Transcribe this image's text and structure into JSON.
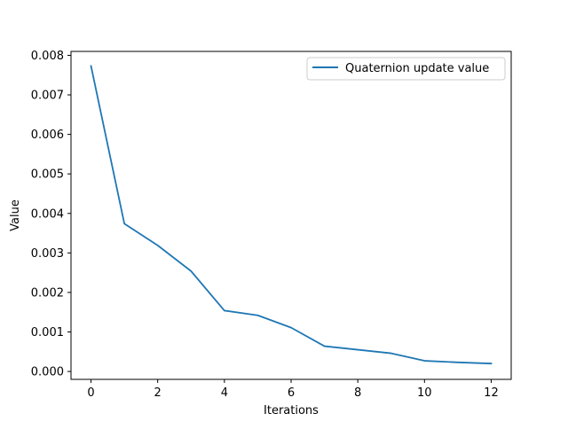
{
  "chart_data": {
    "type": "line",
    "title": "",
    "xlabel": "Iterations",
    "ylabel": "Value",
    "xlim": [
      -0.6,
      12.6
    ],
    "ylim": [
      -0.0002,
      0.0081
    ],
    "xticks": [
      0,
      2,
      4,
      6,
      8,
      10,
      12
    ],
    "yticks": [
      0.0,
      0.001,
      0.002,
      0.003,
      0.004,
      0.005,
      0.006,
      0.007,
      0.008
    ],
    "ytick_labels": [
      "0.000",
      "0.001",
      "0.002",
      "0.003",
      "0.004",
      "0.005",
      "0.006",
      "0.007",
      "0.008"
    ],
    "xtick_labels": [
      "0",
      "2",
      "4",
      "6",
      "8",
      "10",
      "12"
    ],
    "grid": false,
    "legend_position": "top-right",
    "series": [
      {
        "name": "Quaternion update value",
        "color": "#1f77b4",
        "x": [
          0,
          1,
          2,
          3,
          4,
          5,
          6,
          7,
          8,
          9,
          10,
          11,
          12
        ],
        "values": [
          0.00773,
          0.00374,
          0.00319,
          0.00254,
          0.00154,
          0.00142,
          0.00111,
          0.00064,
          0.00055,
          0.00046,
          0.00027,
          0.00023,
          0.0002
        ]
      }
    ]
  }
}
